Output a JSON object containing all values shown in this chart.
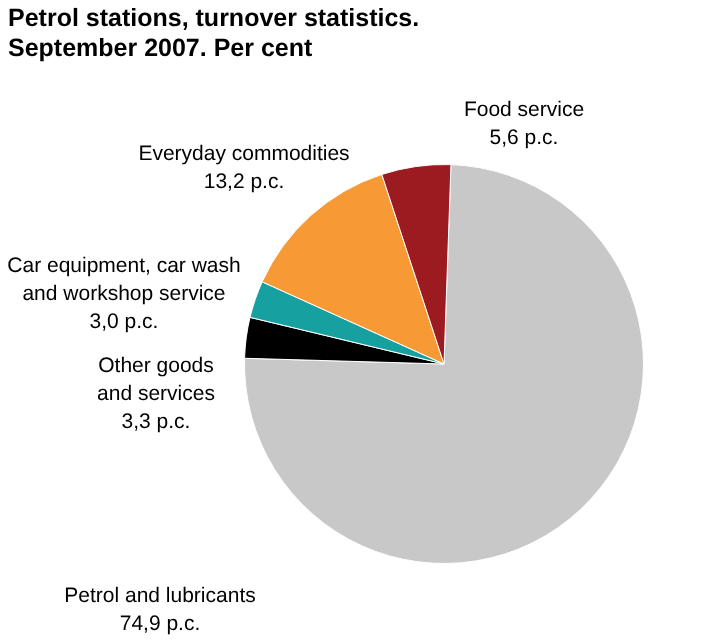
{
  "chart_data": {
    "type": "pie",
    "title": "Petrol stations, turnover statistics. September 2007. Per cent",
    "categories": [
      "Petrol and lubricants",
      "Other goods and services",
      "Car equipment, car wash and workshop service",
      "Everyday commodities",
      "Food service"
    ],
    "values": [
      74.9,
      3.3,
      3.0,
      13.2,
      5.6
    ],
    "value_labels": [
      "74,9 p.c.",
      "3,3 p.c.",
      "3,0 p.c.",
      "13,2 p.c.",
      "5,6 p.c."
    ],
    "colors": [
      "#c8c8c8",
      "#000000",
      "#17a0a0",
      "#f79a36",
      "#9b1b20"
    ],
    "legend": false
  }
}
